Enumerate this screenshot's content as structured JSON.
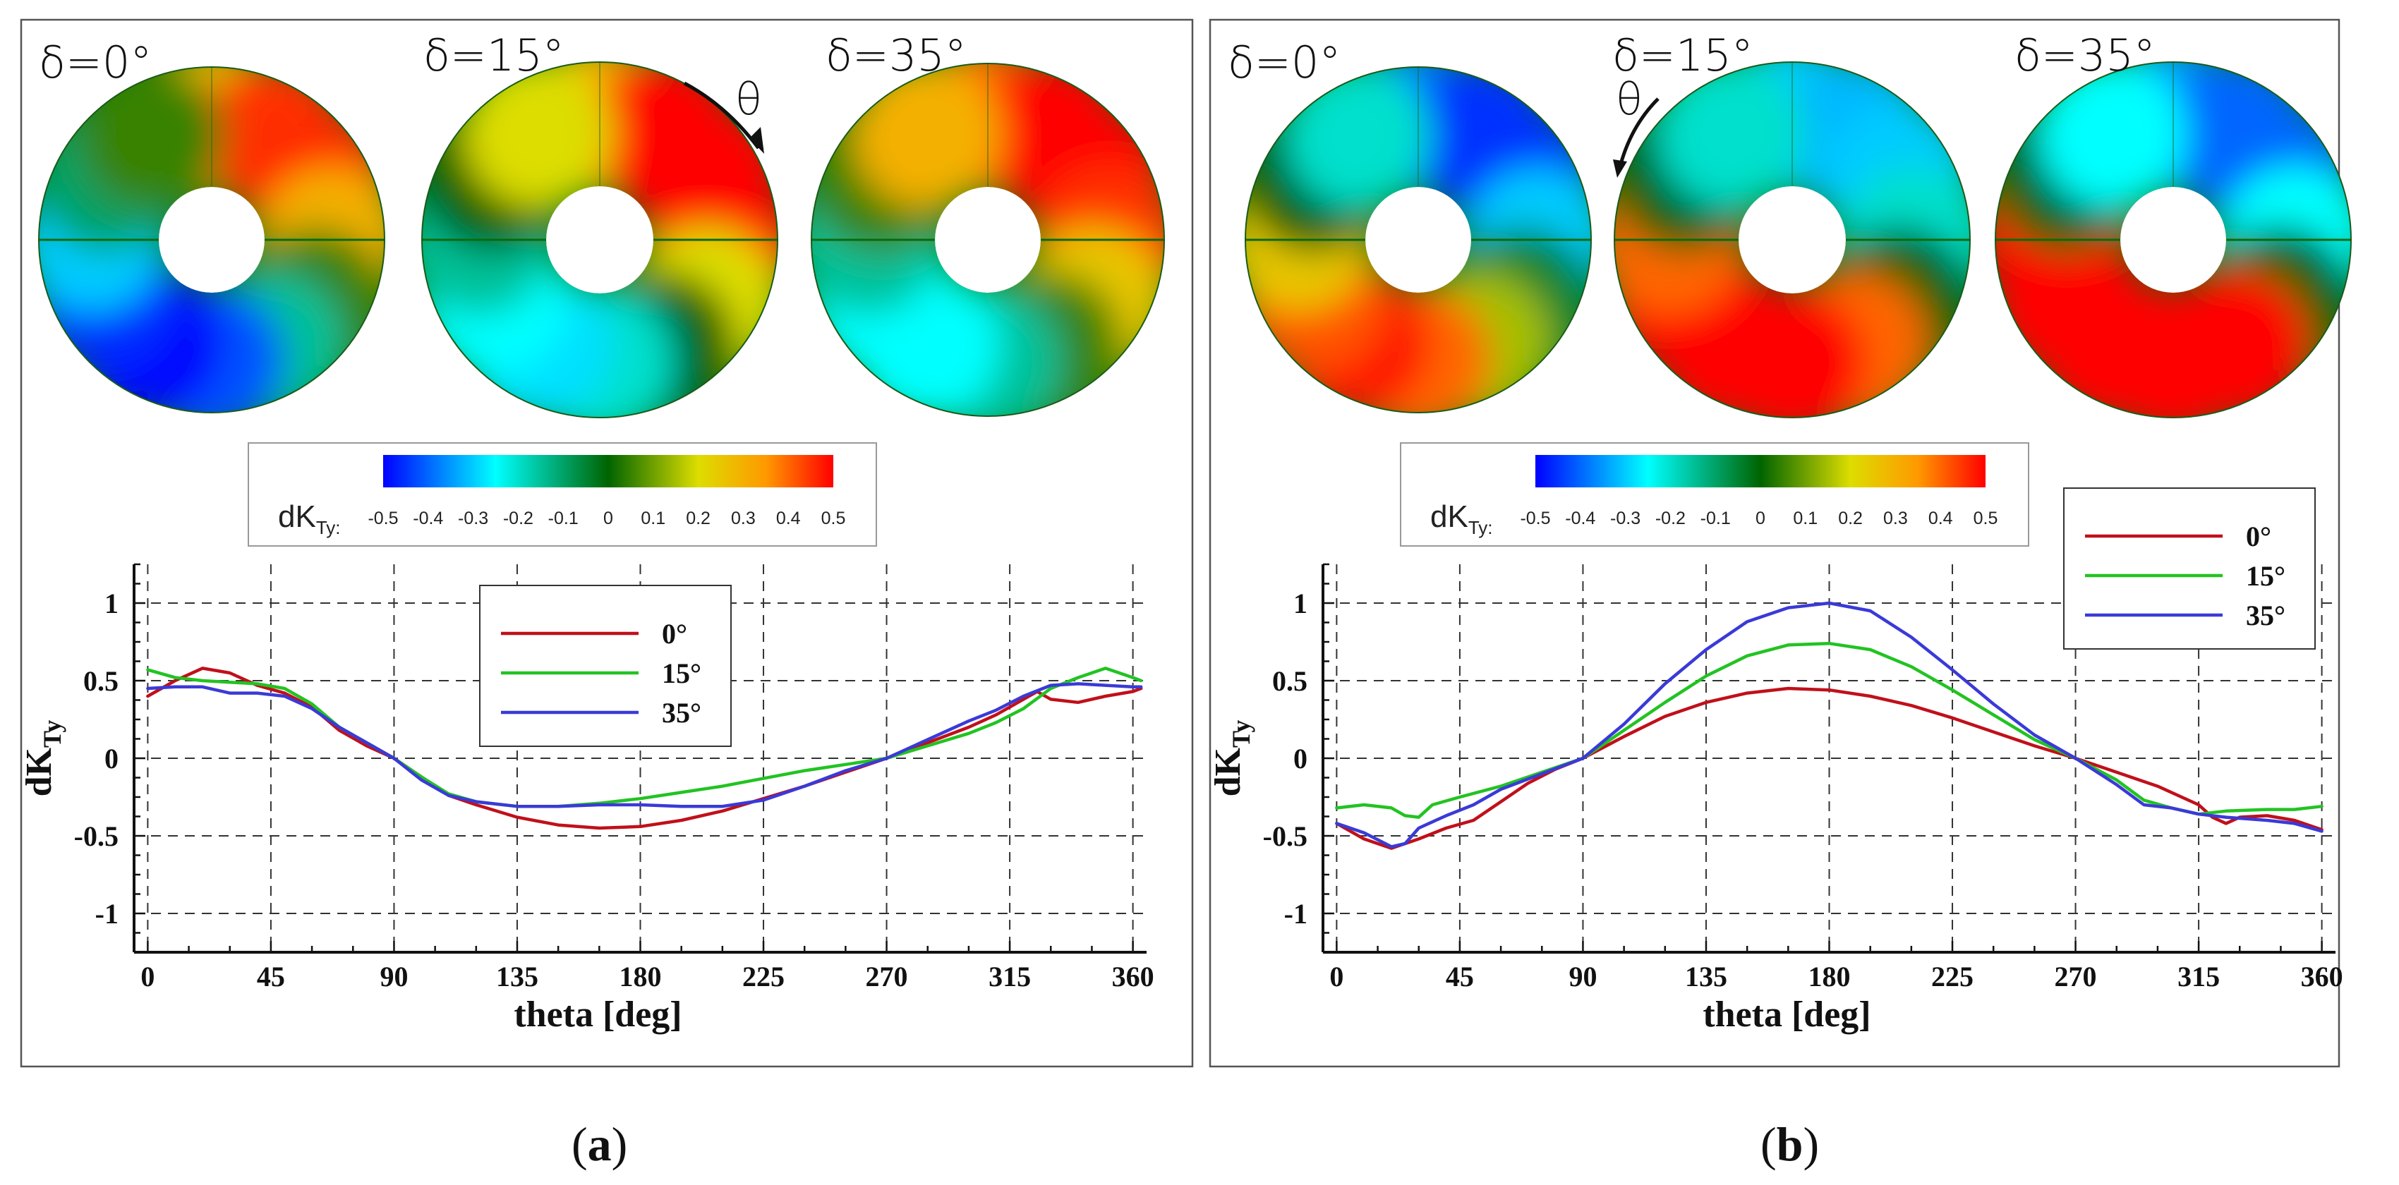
{
  "figure": {
    "colorbar_ticks": [
      "-0.5",
      "-0.4",
      "-0.3",
      "-0.2",
      "-0.1",
      "0",
      "0.1",
      "0.2",
      "0.3",
      "0.4",
      "0.5"
    ],
    "colorbar_label_main": "dK",
    "colorbar_label_sub": "Ty:",
    "theta_symbol": "θ"
  },
  "colors": {
    "red": "#c0101a",
    "green": "#22c322",
    "blue": "#3a3ad8"
  },
  "chart_data": [
    {
      "type": "line",
      "caption_open": "(",
      "caption": "a",
      "caption_close": ")",
      "annulus_labels": [
        "δ=0°",
        "δ=15°",
        "δ=35°"
      ],
      "annulus_colormaps": [
        [
          0.28,
          0.45,
          0.46,
          0.3,
          0.05,
          -0.15,
          -0.42,
          -0.5,
          -0.46,
          -0.3,
          -0.1,
          0.05
        ],
        [
          0.3,
          0.5,
          0.55,
          0.5,
          0.2,
          0.0,
          -0.2,
          -0.28,
          -0.25,
          -0.15,
          0.0,
          0.2
        ],
        [
          0.4,
          0.5,
          0.5,
          0.45,
          0.25,
          0.05,
          -0.15,
          -0.25,
          -0.25,
          -0.15,
          0.05,
          0.3
        ]
      ],
      "x_label": "theta [deg]",
      "y_label_main": "dK",
      "y_label_sub": "Ty",
      "xlim": [
        -5,
        365
      ],
      "ylim": [
        -1.25,
        1.25
      ],
      "x_ticks": [
        0,
        45,
        90,
        135,
        180,
        225,
        270,
        315,
        360
      ],
      "y_ticks": [
        -1,
        -0.5,
        0,
        0.5,
        1
      ],
      "x_tick_labels": [
        "0",
        "45",
        "90",
        "135",
        "180",
        "225",
        "270",
        "315",
        "360"
      ],
      "y_tick_labels": [
        "-1",
        "-0.5",
        "0",
        "0.5",
        "1"
      ],
      "legend_position": "top-center",
      "series": [
        {
          "name": "0°",
          "color": "#c0101a",
          "x": [
            0,
            10,
            20,
            30,
            40,
            50,
            60,
            70,
            80,
            90,
            100,
            110,
            120,
            135,
            150,
            165,
            180,
            195,
            210,
            225,
            240,
            255,
            270,
            285,
            300,
            310,
            320,
            325,
            330,
            340,
            350,
            360,
            363
          ],
          "y": [
            0.4,
            0.5,
            0.58,
            0.55,
            0.47,
            0.42,
            0.33,
            0.18,
            0.08,
            0.0,
            -0.12,
            -0.24,
            -0.3,
            -0.38,
            -0.43,
            -0.45,
            -0.44,
            -0.4,
            -0.34,
            -0.26,
            -0.18,
            -0.09,
            0.0,
            0.1,
            0.2,
            0.28,
            0.38,
            0.43,
            0.38,
            0.36,
            0.4,
            0.43,
            0.45
          ]
        },
        {
          "name": "15°",
          "color": "#22c322",
          "x": [
            0,
            10,
            20,
            30,
            40,
            50,
            60,
            70,
            80,
            90,
            100,
            110,
            120,
            135,
            150,
            165,
            180,
            195,
            210,
            225,
            240,
            255,
            270,
            285,
            300,
            310,
            320,
            330,
            340,
            350,
            360,
            363
          ],
          "y": [
            0.57,
            0.52,
            0.5,
            0.49,
            0.48,
            0.45,
            0.35,
            0.2,
            0.1,
            0.0,
            -0.12,
            -0.23,
            -0.28,
            -0.31,
            -0.31,
            -0.29,
            -0.26,
            -0.22,
            -0.18,
            -0.13,
            -0.08,
            -0.04,
            0.0,
            0.08,
            0.16,
            0.23,
            0.32,
            0.45,
            0.52,
            0.58,
            0.52,
            0.5
          ]
        },
        {
          "name": "35°",
          "color": "#3a3ad8",
          "x": [
            0,
            10,
            20,
            30,
            40,
            50,
            60,
            70,
            80,
            90,
            100,
            110,
            120,
            135,
            150,
            165,
            180,
            195,
            210,
            225,
            240,
            255,
            270,
            285,
            300,
            310,
            320,
            330,
            340,
            350,
            360,
            363
          ],
          "y": [
            0.45,
            0.46,
            0.46,
            0.42,
            0.42,
            0.4,
            0.32,
            0.2,
            0.1,
            0.0,
            -0.14,
            -0.24,
            -0.28,
            -0.31,
            -0.31,
            -0.3,
            -0.3,
            -0.31,
            -0.31,
            -0.27,
            -0.18,
            -0.08,
            0.0,
            0.12,
            0.24,
            0.31,
            0.4,
            0.47,
            0.48,
            0.47,
            0.46,
            0.46
          ]
        }
      ]
    },
    {
      "type": "line",
      "caption_open": "(",
      "caption": "b",
      "caption_close": ")",
      "annulus_labels": [
        "δ=0°",
        "δ=15°",
        "δ=35°"
      ],
      "annulus_colormaps": [
        [
          -0.38,
          -0.45,
          -0.45,
          -0.3,
          -0.05,
          0.15,
          0.4,
          0.48,
          0.42,
          0.25,
          0.0,
          -0.2
        ],
        [
          -0.3,
          -0.32,
          -0.3,
          -0.2,
          0.0,
          0.4,
          0.75,
          0.9,
          0.75,
          0.4,
          0.0,
          -0.2
        ],
        [
          -0.35,
          -0.4,
          -0.4,
          -0.25,
          0.0,
          0.5,
          0.95,
          1.0,
          0.95,
          0.5,
          0.0,
          -0.25
        ]
      ],
      "x_label": "theta [deg]",
      "y_label_main": "dK",
      "y_label_sub": "Ty",
      "xlim": [
        -5,
        365
      ],
      "ylim": [
        -1.25,
        1.25
      ],
      "x_ticks": [
        0,
        45,
        90,
        135,
        180,
        225,
        270,
        315,
        360
      ],
      "y_ticks": [
        -1,
        -0.5,
        0,
        0.5,
        1
      ],
      "x_tick_labels": [
        "0",
        "45",
        "90",
        "135",
        "180",
        "225",
        "270",
        "315",
        "360"
      ],
      "y_tick_labels": [
        "-1",
        "-0.5",
        "0",
        "0.5",
        "1"
      ],
      "legend_position": "top-right",
      "series": [
        {
          "name": "0°",
          "color": "#c0101a",
          "x": [
            0,
            10,
            20,
            30,
            40,
            50,
            60,
            70,
            80,
            90,
            105,
            120,
            135,
            150,
            165,
            180,
            195,
            210,
            225,
            240,
            255,
            270,
            285,
            300,
            315,
            320,
            325,
            330,
            340,
            350,
            360
          ],
          "y": [
            -0.42,
            -0.52,
            -0.58,
            -0.52,
            -0.45,
            -0.4,
            -0.28,
            -0.16,
            -0.07,
            0.0,
            0.14,
            0.27,
            0.36,
            0.42,
            0.45,
            0.44,
            0.4,
            0.34,
            0.26,
            0.17,
            0.08,
            0.0,
            -0.09,
            -0.18,
            -0.3,
            -0.38,
            -0.42,
            -0.38,
            -0.37,
            -0.4,
            -0.46
          ]
        },
        {
          "name": "15°",
          "color": "#22c322",
          "x": [
            0,
            10,
            20,
            25,
            30,
            35,
            45,
            60,
            75,
            90,
            105,
            120,
            135,
            150,
            165,
            180,
            195,
            210,
            225,
            240,
            255,
            270,
            285,
            295,
            305,
            315,
            325,
            340,
            350,
            360
          ],
          "y": [
            -0.32,
            -0.3,
            -0.32,
            -0.37,
            -0.38,
            -0.3,
            -0.25,
            -0.18,
            -0.09,
            0.0,
            0.18,
            0.36,
            0.53,
            0.66,
            0.73,
            0.74,
            0.7,
            0.59,
            0.44,
            0.28,
            0.12,
            0.0,
            -0.14,
            -0.27,
            -0.32,
            -0.36,
            -0.34,
            -0.33,
            -0.33,
            -0.31
          ]
        },
        {
          "name": "35°",
          "color": "#3a3ad8",
          "x": [
            0,
            10,
            20,
            25,
            30,
            40,
            50,
            60,
            75,
            90,
            105,
            120,
            135,
            150,
            165,
            180,
            195,
            210,
            225,
            240,
            255,
            270,
            285,
            295,
            305,
            315,
            325,
            340,
            350,
            360
          ],
          "y": [
            -0.42,
            -0.48,
            -0.57,
            -0.55,
            -0.45,
            -0.37,
            -0.3,
            -0.2,
            -0.1,
            0.0,
            0.22,
            0.48,
            0.7,
            0.88,
            0.97,
            1.0,
            0.95,
            0.78,
            0.57,
            0.35,
            0.15,
            0.0,
            -0.17,
            -0.3,
            -0.32,
            -0.36,
            -0.38,
            -0.4,
            -0.42,
            -0.47
          ]
        }
      ]
    }
  ]
}
